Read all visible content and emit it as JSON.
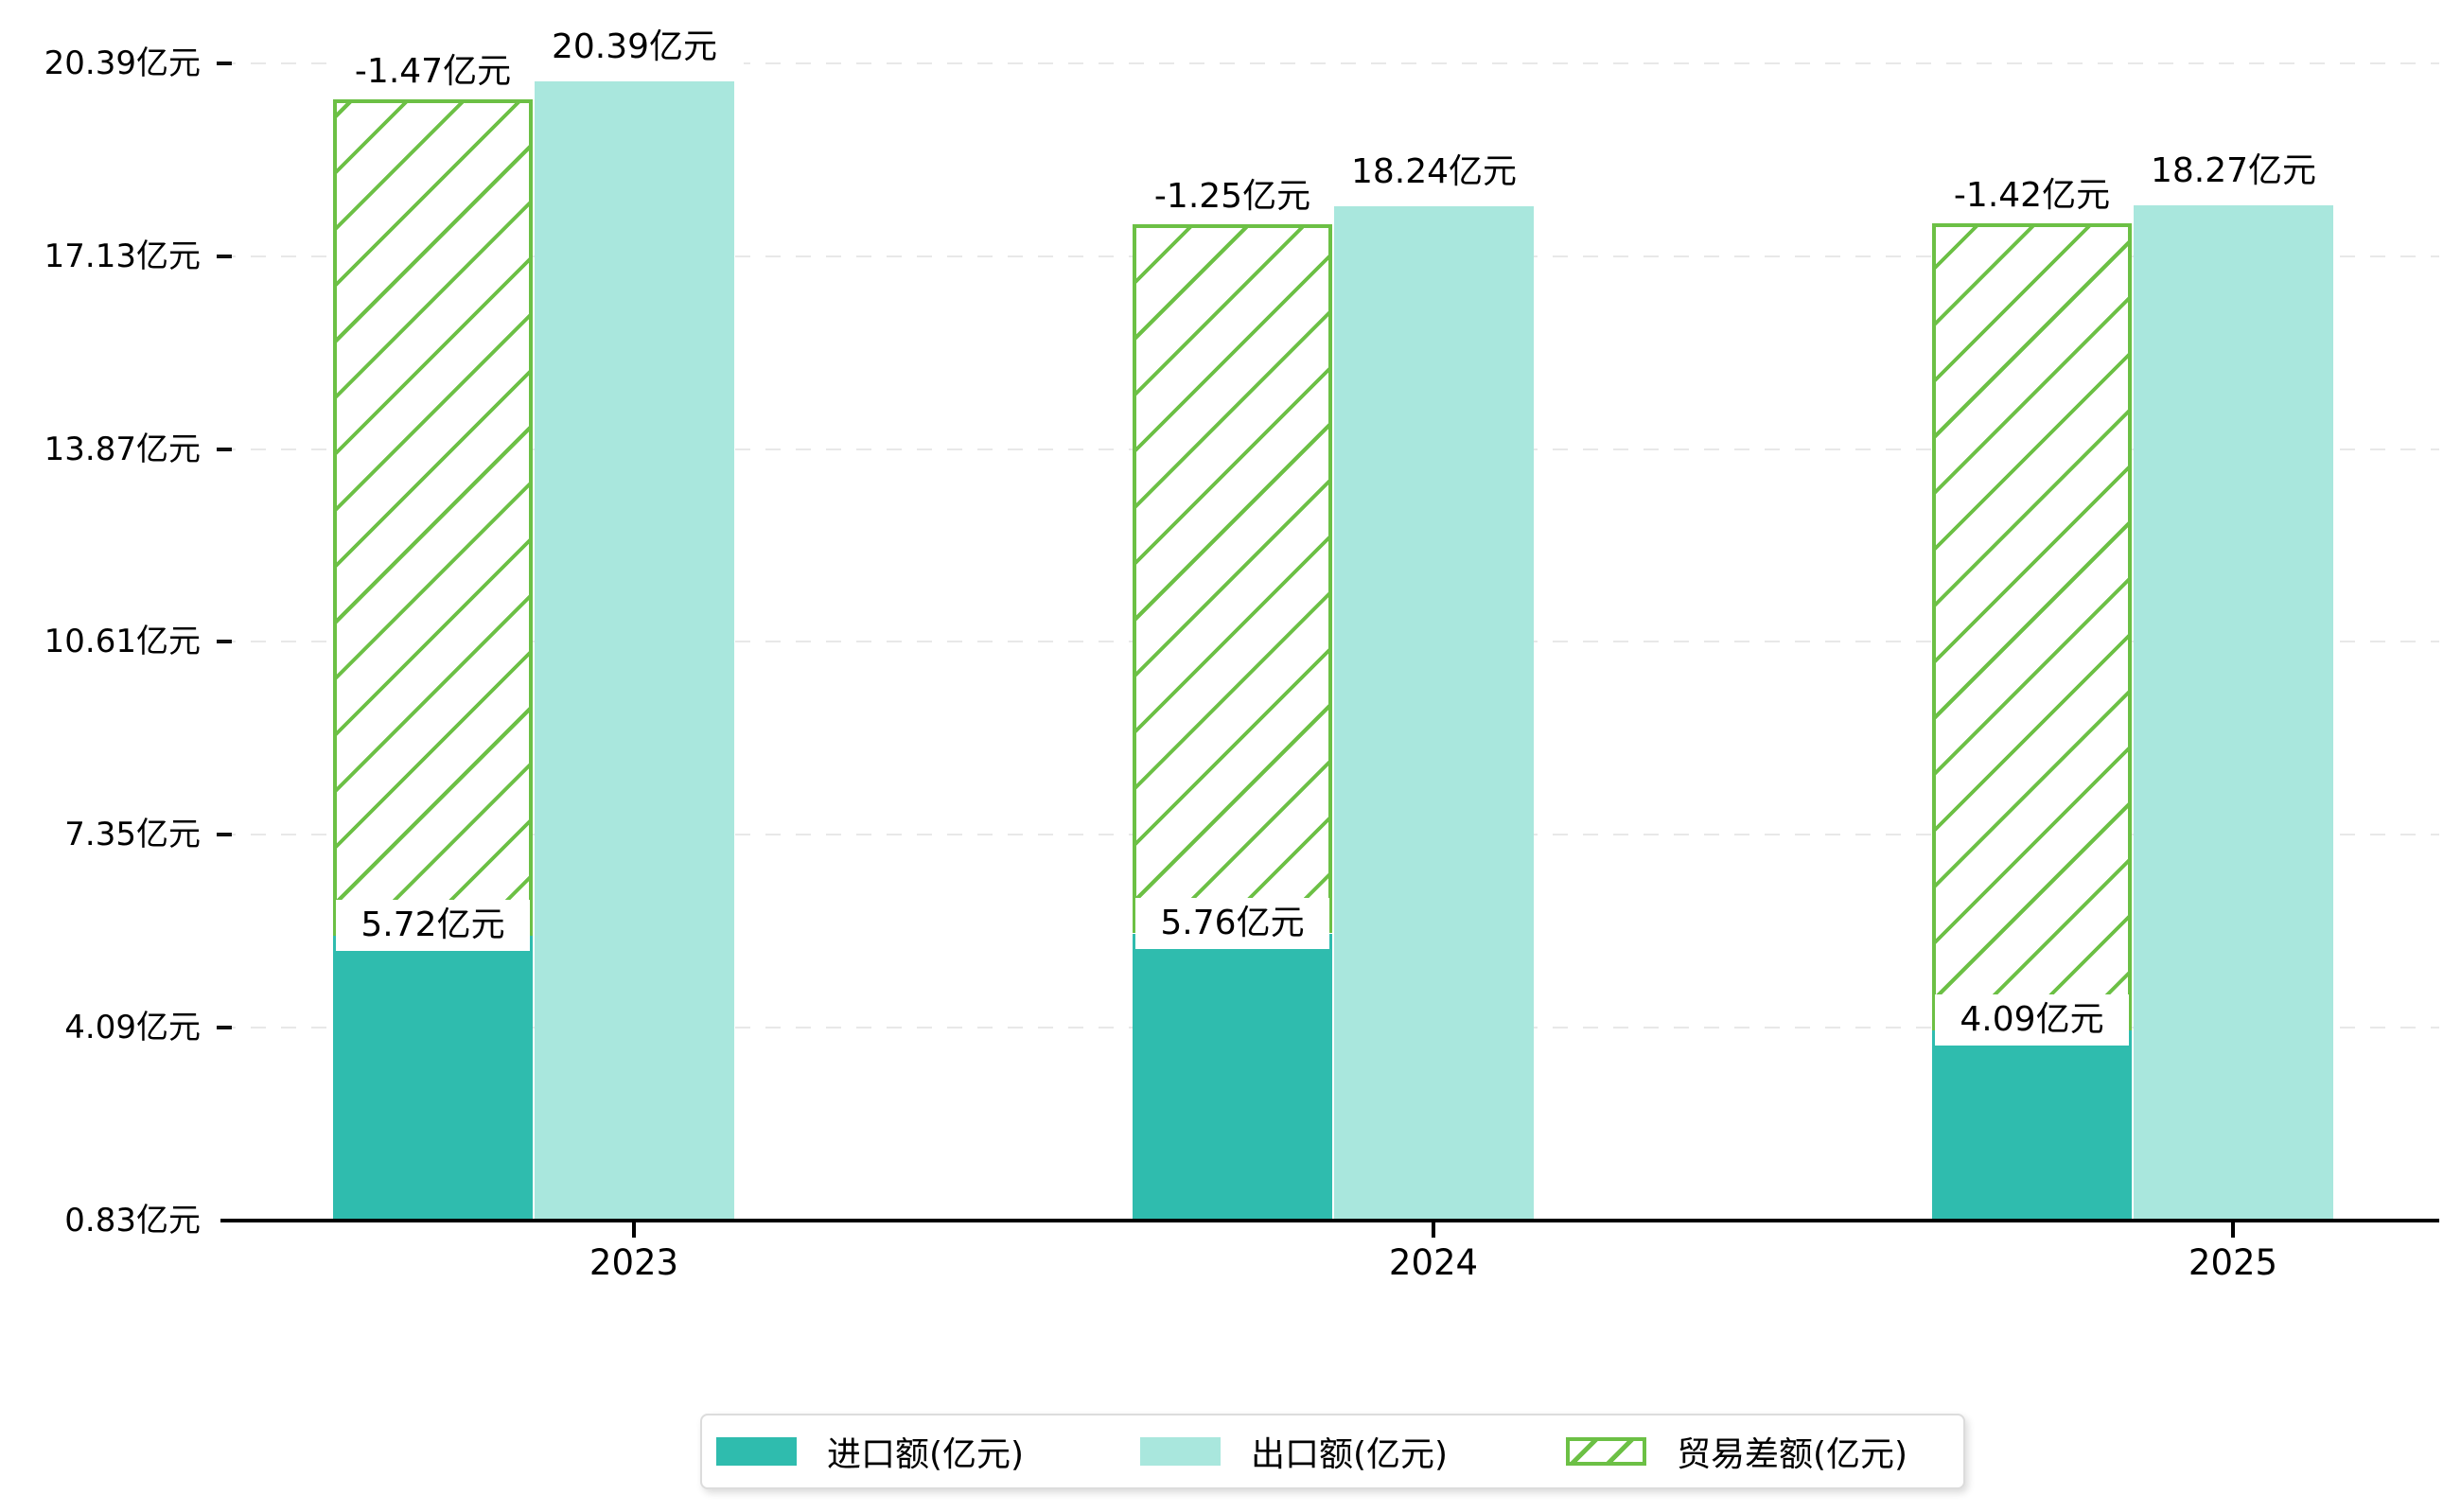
{
  "chart_data": {
    "type": "bar",
    "categories": [
      "2023",
      "2024",
      "2025"
    ],
    "series": [
      {
        "name": "进口额(亿元)",
        "role": "import",
        "values": [
          5.72,
          5.76,
          4.09
        ],
        "data_labels": [
          "5.72亿元",
          "5.76亿元",
          "4.09亿元"
        ],
        "label_style": "white-box"
      },
      {
        "name": "出口额(亿元)",
        "role": "export",
        "values": [
          20.39,
          18.24,
          18.27
        ],
        "data_labels": [
          "20.39亿元",
          "18.24亿元",
          "18.27亿元"
        ],
        "label_style": "plain"
      },
      {
        "name": "贸易差额(亿元)",
        "role": "trade-balance",
        "values": [
          -1.47,
          -1.25,
          -1.42
        ],
        "data_labels": [
          "-1.47亿元",
          "-1.25亿元",
          "-1.42亿元"
        ],
        "style": "hatched-outline",
        "drawn_span": "from import value up to export value",
        "label_style": "plain"
      }
    ],
    "y_axis": {
      "tick_labels": [
        "0.83亿元",
        "4.09亿元",
        "7.35亿元",
        "10.61亿元",
        "13.87亿元",
        "17.13亿元",
        "20.39亿元"
      ],
      "tick_values": [
        0.83,
        4.09,
        7.35,
        10.61,
        13.87,
        17.13,
        20.39
      ],
      "range": [
        0.83,
        20.39
      ],
      "gridlines": "dashed"
    },
    "x_axis": {
      "tick_labels": [
        "2023",
        "2024",
        "2025"
      ]
    },
    "legend": {
      "position": "bottom",
      "entries": [
        "进口额(亿元)",
        "出口额(亿元)",
        "贸易差额(亿元)"
      ]
    },
    "colors": {
      "import": "#2fbcae",
      "export": "#a9e7dd",
      "balance_outline": "#6cc045",
      "gridline": "#e8e8e8",
      "axis": "#000000",
      "text": "#000000",
      "label_box_bg": "#ffffff",
      "legend_border": "#dcdcdc",
      "background": "#ffffff"
    }
  }
}
